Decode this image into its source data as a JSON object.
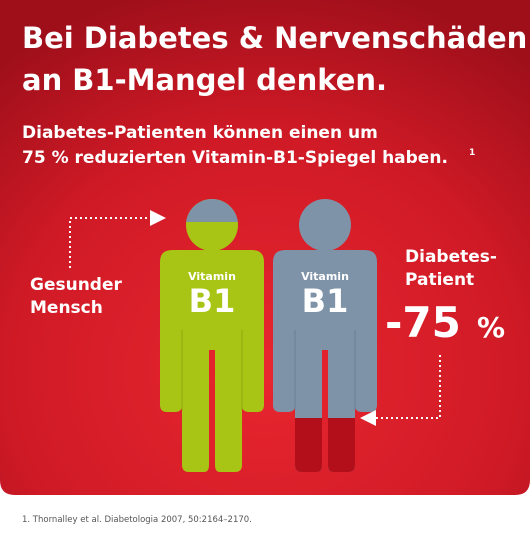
{
  "title": {
    "lines": [
      "Bei Diabetes & Nervenschäden",
      "an B1-Mangel denken."
    ]
  },
  "subtitle": {
    "lines": [
      "Diabetes-Patienten können einen um",
      "75 % reduzierten Vitamin-B1-Spiegel haben."
    ],
    "footnote_mark": "1"
  },
  "healthy": {
    "label_lines": [
      "Gesunder",
      "Mensch"
    ],
    "figure_small": "Vitamin",
    "figure_large": "B1"
  },
  "diabetic": {
    "label_lines": [
      "Diabetes-",
      "Patient"
    ],
    "reduction": "-75",
    "unit": "%",
    "figure_small": "Vitamin",
    "figure_large": "B1"
  },
  "footnote": "1. Thornalley et al. Diabetologia 2007, 50:2164–2170."
}
